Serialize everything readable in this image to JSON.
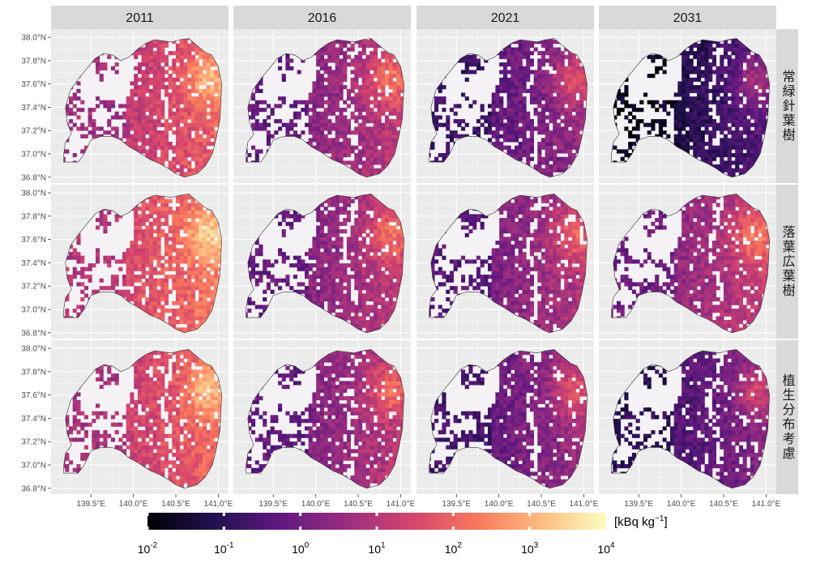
{
  "figure": {
    "columns": [
      "2011",
      "2016",
      "2021",
      "2031"
    ],
    "rows": [
      "常緑針葉樹",
      "落葉広葉樹",
      "植生分布考慮"
    ],
    "lat_ticks": [
      "38.0°N",
      "37.8°N",
      "37.6°N",
      "37.4°N",
      "37.2°N",
      "37.0°N",
      "36.8°N"
    ],
    "lon_ticks": [
      "139.5°E",
      "140.0°E",
      "140.5°E",
      "141.0°E"
    ],
    "lat_range": [
      36.75,
      38.07
    ],
    "lon_range": [
      139.03,
      141.12
    ]
  },
  "legend": {
    "unit_prefix": "[kBq kg",
    "unit_exp": "−1",
    "unit_suffix": "]",
    "scale": "log10",
    "range": [
      -2,
      4
    ],
    "tick_base": "10",
    "tick_exponents": [
      "-2",
      "-1",
      "0",
      "1",
      "2",
      "3",
      "4"
    ],
    "colors": [
      "#000004",
      "#221150",
      "#5f187f",
      "#982d80",
      "#d3436e",
      "#f8765c",
      "#febb81",
      "#fcfdbf"
    ]
  },
  "panel_intensity": [
    [
      0.72,
      0.58,
      0.48,
      0.33
    ],
    [
      0.78,
      0.58,
      0.55,
      0.6
    ],
    [
      0.74,
      0.57,
      0.5,
      0.44
    ]
  ],
  "colors": {
    "panel_bg": "#ebebeb",
    "strip_bg": "#d9d9d9",
    "grid": "#ffffff",
    "outline": "#333333"
  }
}
